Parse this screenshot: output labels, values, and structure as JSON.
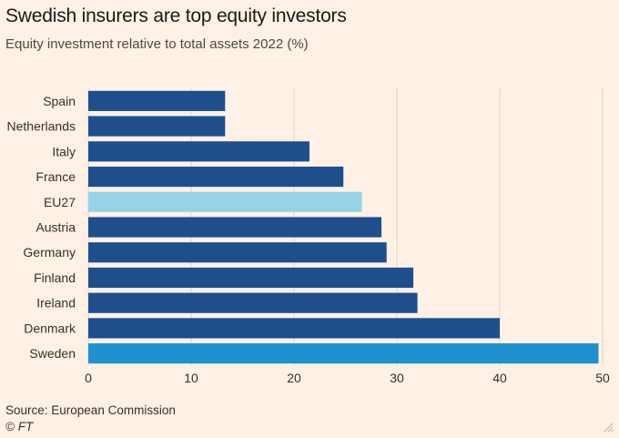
{
  "title": "Swedish insurers are top equity investors",
  "subtitle": "Equity investment relative to total assets 2022 (%)",
  "source": "Source: European Commission",
  "credit": "© FT",
  "colors": {
    "bar": "#1e4f8c",
    "eu27": "#96d3e8",
    "sweden": "#2090d0",
    "grid": "#e0d3c7",
    "text": "#33302e"
  },
  "chart_data": {
    "type": "bar",
    "orientation": "horizontal",
    "categories": [
      "Spain",
      "Netherlands",
      "Italy",
      "France",
      "EU27",
      "Austria",
      "Germany",
      "Finland",
      "Ireland",
      "Denmark",
      "Sweden"
    ],
    "values": [
      13.3,
      13.3,
      21.5,
      24.8,
      26.6,
      28.5,
      29.0,
      31.6,
      32.0,
      40.0,
      49.6
    ],
    "highlight": {
      "EU27": "eu27",
      "Sweden": "sweden"
    },
    "xlim": [
      0,
      50
    ],
    "xticks": [
      0,
      10,
      20,
      30,
      40,
      50
    ],
    "title": "Swedish insurers are top equity investors",
    "xlabel": "",
    "ylabel": "",
    "grid": true
  }
}
